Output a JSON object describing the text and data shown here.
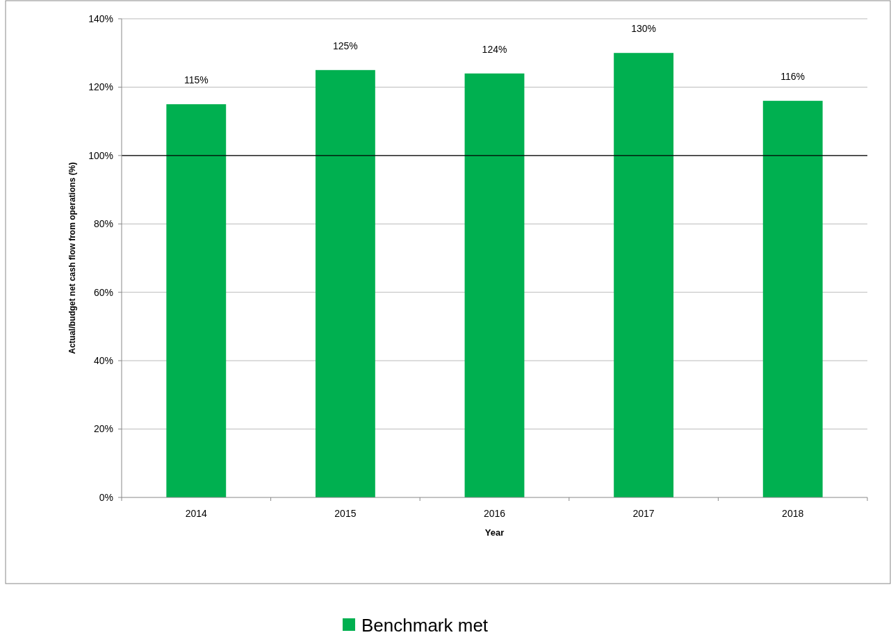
{
  "chart_data": {
    "type": "bar",
    "xlabel": "Year",
    "ylabel": "Actual/budget net cash flow from operations (%)",
    "categories": [
      "2014",
      "2015",
      "2016",
      "2017",
      "2018"
    ],
    "series": [
      {
        "name": "Benchmark met",
        "color": "#00b050",
        "values": [
          115,
          125,
          124,
          130,
          116
        ],
        "value_labels": [
          "115%",
          "125%",
          "124%",
          "130%",
          "116%"
        ]
      }
    ],
    "ylim": [
      0,
      140
    ],
    "yticks": [
      {
        "value": 0,
        "label": "0%"
      },
      {
        "value": 20,
        "label": "20%"
      },
      {
        "value": 40,
        "label": "40%"
      },
      {
        "value": 60,
        "label": "60%"
      },
      {
        "value": 80,
        "label": "80%"
      },
      {
        "value": 100,
        "label": "100%"
      },
      {
        "value": 120,
        "label": "120%"
      },
      {
        "value": 140,
        "label": "140%"
      }
    ],
    "grid": "y",
    "legend": "bottom",
    "ref_lines": [
      {
        "axis": "y",
        "value": 100,
        "color": "#000000"
      }
    ]
  }
}
